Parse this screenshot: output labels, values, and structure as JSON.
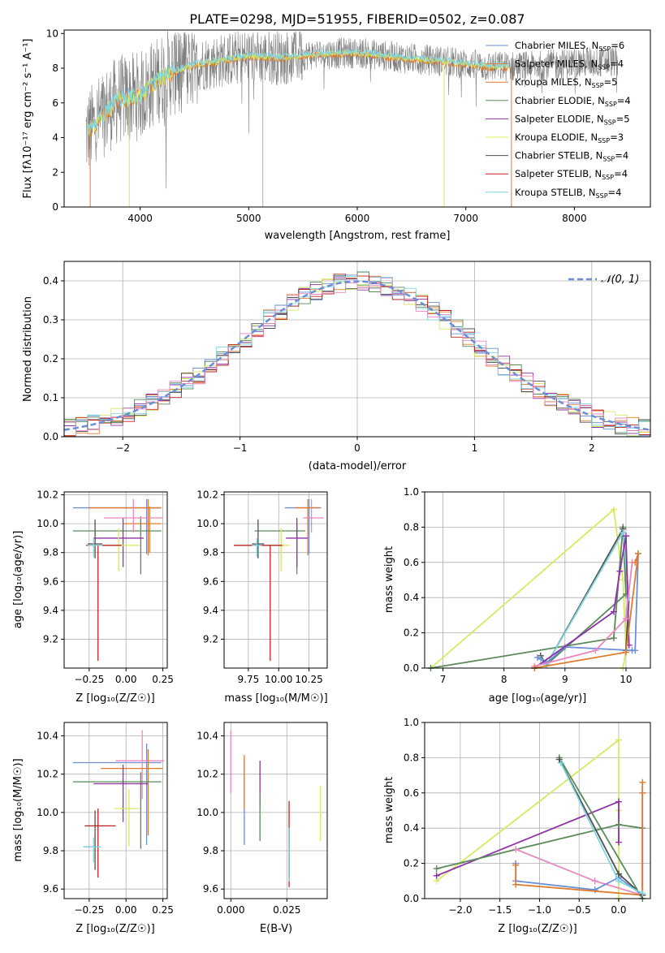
{
  "chart_data": [
    {
      "id": "spectrum",
      "type": "line",
      "title": "PLATE=0298, MJD=51955, FIBERID=0502, z=0.087",
      "xlabel": "wavelength [Angstrom, rest frame]",
      "ylabel": "Flux [fλ10⁻¹⁷ erg cm⁻² s⁻¹ A⁻¹]",
      "xlim": [
        3300,
        8700
      ],
      "ylim": [
        0,
        10.2
      ],
      "xticks": [
        4000,
        5000,
        6000,
        7000,
        8000
      ],
      "yticks": [
        0,
        2,
        4,
        6,
        8,
        10
      ],
      "grid": false,
      "legend_position": "right",
      "data_continuum": {
        "x": [
          3500,
          3600,
          3700,
          3800,
          3900,
          4000,
          4100,
          4200,
          4300,
          4500,
          4700,
          5000,
          5300,
          5600,
          6000,
          6400,
          6800,
          7200,
          7600,
          8000,
          8400
        ],
        "y": [
          4.2,
          4.9,
          5.6,
          6.2,
          6.3,
          6.4,
          7.0,
          7.5,
          7.8,
          8.2,
          8.4,
          8.7,
          8.6,
          8.8,
          8.9,
          8.6,
          8.4,
          8.1,
          8.1,
          8.3,
          8.4
        ]
      },
      "series": [
        {
          "name": "Chabrier MILES, N_SSP=6",
          "color": "#6b8ed6"
        },
        {
          "name": "Salpeter MILES, N_SSP=4",
          "color": "#e07b2e"
        },
        {
          "name": "Kroupa MILES, N_SSP=5",
          "color": "#e07b2e"
        },
        {
          "name": "Chabrier ELODIE, N_SSP=4",
          "color": "#5a8a5a"
        },
        {
          "name": "Salpeter ELODIE, N_SSP=5",
          "color": "#9030a8"
        },
        {
          "name": "Kroupa ELODIE, N_SSP=3",
          "color": "#d8e860"
        },
        {
          "name": "Chabrier STELIB, N_SSP=4",
          "color": "#505050"
        },
        {
          "name": "Salpeter STELIB, N_SSP=4",
          "color": "#c02020"
        },
        {
          "name": "Kroupa STELIB, N_SSP=4",
          "color": "#7fd6e0"
        }
      ],
      "legend": [
        {
          "label": "Chabrier MILES, N",
          "sub": "SSP",
          "suffix": "=6",
          "color": "#6b8ed6"
        },
        {
          "label": "Salpeter MILES, N",
          "sub": "SSP",
          "suffix": "=4",
          "color": "#e07b2e"
        },
        {
          "label": "Kroupa MILES, N",
          "sub": "SSP",
          "suffix": "=5",
          "color": "#e07b2e"
        },
        {
          "label": "Chabrier ELODIE, N",
          "sub": "SSP",
          "suffix": "=4",
          "color": "#5a8a5a"
        },
        {
          "label": "Salpeter ELODIE, N",
          "sub": "SSP",
          "suffix": "=5",
          "color": "#9030a8"
        },
        {
          "label": "Kroupa ELODIE, N",
          "sub": "SSP",
          "suffix": "=3",
          "color": "#d8e860"
        },
        {
          "label": "Chabrier STELIB, N",
          "sub": "SSP",
          "suffix": "=4",
          "color": "#505050"
        },
        {
          "label": "Salpeter STELIB, N",
          "sub": "SSP",
          "suffix": "=4",
          "color": "#c02020"
        },
        {
          "label": "Kroupa STELIB, N",
          "sub": "SSP",
          "suffix": "=4",
          "color": "#7fd6e0"
        }
      ]
    },
    {
      "id": "residuals",
      "type": "line",
      "xlabel": "(data-model)/error",
      "ylabel": "Normed distribution",
      "xlim": [
        -2.5,
        2.5
      ],
      "ylim": [
        0,
        0.45
      ],
      "xticks": [
        -2,
        -1,
        0,
        1,
        2
      ],
      "yticks": [
        0.0,
        0.1,
        0.2,
        0.3,
        0.4
      ],
      "grid": true,
      "legend_position": "top-right",
      "reference_curve": {
        "label": "𝒩(0, 1)",
        "color": "#6b8ed6",
        "style": "dashed"
      },
      "bin_width": 0.1
    },
    {
      "id": "age_vs_Z",
      "type": "scatter",
      "xlabel": "Z [log₁₀(Z/Z☉)]",
      "ylabel": "age [log₁₀(age/yr)]",
      "xlim": [
        -0.42,
        0.28
      ],
      "ylim": [
        9.0,
        10.22
      ],
      "xticks": [
        -0.25,
        0.0,
        0.25
      ],
      "yticks": [
        9.2,
        9.4,
        9.6,
        9.8,
        10.0,
        10.2
      ],
      "grid": true,
      "errorbars": [
        {
          "color": "#6b8ed6",
          "x": 0.14,
          "y": 10.11,
          "xerr": [
            0.5,
            0.1
          ],
          "yerr": [
            0.32,
            0.06
          ]
        },
        {
          "color": "#e07b2e",
          "x": 0.15,
          "y": 10.11,
          "xerr": [
            0.4,
            0.09
          ],
          "yerr": [
            0.33,
            0.06
          ]
        },
        {
          "color": "#e07b2e",
          "x": 0.16,
          "y": 10.0,
          "xerr": [
            0.18,
            0.08
          ],
          "yerr": [
            0.2,
            0.12
          ]
        },
        {
          "color": "#5a8a5a",
          "x": 0.1,
          "y": 9.95,
          "xerr": [
            0.46,
            0.14
          ],
          "yerr": [
            0.3,
            0.1
          ]
        },
        {
          "color": "#9030a8",
          "x": -0.02,
          "y": 9.9,
          "xerr": [
            0.2,
            0.14
          ],
          "yerr": [
            0.2,
            0.14
          ]
        },
        {
          "color": "#d8e860",
          "x": -0.05,
          "y": 9.85,
          "xerr": [
            0.16,
            0.14
          ],
          "yerr": [
            0.18,
            0.12
          ]
        },
        {
          "color": "#505050",
          "x": -0.21,
          "y": 9.86,
          "xerr": [
            0.05,
            0.05
          ],
          "yerr": [
            0.1,
            0.17
          ]
        },
        {
          "color": "#c02020",
          "x": -0.19,
          "y": 9.85,
          "xerr": [
            0.08,
            0.16
          ],
          "yerr": [
            0.8,
            0.0
          ]
        },
        {
          "color": "#7fd6e0",
          "x": -0.22,
          "y": 9.85,
          "xerr": [
            0.04,
            0.06
          ],
          "yerr": [
            0.08,
            0.05
          ]
        },
        {
          "color": "#e888c0",
          "x": 0.05,
          "y": 10.04,
          "xerr": [
            0.2,
            0.2
          ],
          "yerr": [
            0.1,
            0.13
          ]
        }
      ]
    },
    {
      "id": "age_vs_mass",
      "type": "scatter",
      "xlabel": "mass [log₁₀(M/M☉)]",
      "ylabel": "",
      "xlim": [
        9.55,
        10.4
      ],
      "ylim": [
        9.0,
        10.22
      ],
      "xticks": [
        9.75,
        10.0,
        10.25
      ],
      "yticks": [
        9.2,
        9.4,
        9.6,
        9.8,
        10.0,
        10.2
      ],
      "grid": true,
      "errorbars": [
        {
          "color": "#6b8ed6",
          "x": 10.25,
          "y": 10.11,
          "xerr": [
            0.2,
            0.1
          ],
          "yerr": [
            0.32,
            0.06
          ]
        },
        {
          "color": "#e07b2e",
          "x": 10.24,
          "y": 10.11,
          "xerr": [
            0.1,
            0.1
          ],
          "yerr": [
            0.33,
            0.06
          ]
        },
        {
          "color": "#e888c0",
          "x": 10.27,
          "y": 10.04,
          "xerr": [
            0.07,
            0.1
          ],
          "yerr": [
            0.1,
            0.13
          ]
        },
        {
          "color": "#5a8a5a",
          "x": 10.15,
          "y": 9.95,
          "xerr": [
            0.35,
            0.07
          ],
          "yerr": [
            0.3,
            0.05
          ]
        },
        {
          "color": "#9030a8",
          "x": 10.15,
          "y": 9.9,
          "xerr": [
            0.09,
            0.09
          ],
          "yerr": [
            0.2,
            0.14
          ]
        },
        {
          "color": "#d8e860",
          "x": 10.02,
          "y": 9.85,
          "xerr": [
            0.1,
            0.07
          ],
          "yerr": [
            0.18,
            0.12
          ]
        },
        {
          "color": "#505050",
          "x": 9.83,
          "y": 9.86,
          "xerr": [
            0.05,
            0.05
          ],
          "yerr": [
            0.1,
            0.17
          ]
        },
        {
          "color": "#c02020",
          "x": 9.93,
          "y": 9.85,
          "xerr": [
            0.3,
            0.1
          ],
          "yerr": [
            0.8,
            0.0
          ]
        },
        {
          "color": "#7fd6e0",
          "x": 9.82,
          "y": 9.85,
          "xerr": [
            0.04,
            0.04
          ],
          "yerr": [
            0.08,
            0.05
          ]
        }
      ]
    },
    {
      "id": "mass_weight_vs_age",
      "type": "line",
      "xlabel": "age [log₁₀(age/yr)]",
      "ylabel": "mass weight",
      "xlim": [
        6.7,
        10.4
      ],
      "ylim": [
        0,
        1.0
      ],
      "xticks": [
        7,
        8,
        9,
        10
      ],
      "yticks": [
        0.0,
        0.2,
        0.4,
        0.6,
        0.8,
        1.0
      ],
      "grid": true,
      "series": [
        {
          "color": "#d8e860",
          "x": [
            6.8,
            9.8,
            9.95,
            10.0,
            9.95
          ],
          "y": [
            0.0,
            0.9,
            0.5,
            0.1,
            0.0
          ]
        },
        {
          "color": "#5a8a5a",
          "x": [
            6.8,
            9.8,
            9.95,
            10.0,
            8.7
          ],
          "y": [
            0.0,
            0.17,
            0.8,
            0.42,
            0.02
          ]
        },
        {
          "color": "#505050",
          "x": [
            8.6,
            8.7,
            9.95,
            10.05,
            10.0
          ],
          "y": [
            0.07,
            0.02,
            0.79,
            0.4,
            0.1
          ]
        },
        {
          "color": "#7fd6e0",
          "x": [
            8.6,
            8.7,
            9.95,
            10.05
          ],
          "y": [
            0.05,
            0.02,
            0.77,
            0.4
          ]
        },
        {
          "color": "#6b8ed6",
          "x": [
            8.55,
            8.7,
            9.0,
            10.1,
            10.15,
            10.2
          ],
          "y": [
            0.06,
            0.03,
            0.12,
            0.1,
            0.1,
            0.65
          ]
        },
        {
          "color": "#9030a8",
          "x": [
            8.5,
            9.8,
            9.9,
            10.0,
            10.05
          ],
          "y": [
            0.0,
            0.32,
            0.55,
            0.75,
            0.13
          ]
        },
        {
          "color": "#e888c0",
          "x": [
            8.5,
            9.5,
            10.0,
            10.1
          ],
          "y": [
            0.01,
            0.1,
            0.28,
            0.6
          ]
        },
        {
          "color": "#e07b2e",
          "x": [
            8.5,
            10.0,
            10.2,
            10.15
          ],
          "y": [
            0.0,
            0.09,
            0.65,
            0.6
          ]
        }
      ]
    },
    {
      "id": "mass_vs_Z",
      "type": "scatter",
      "xlabel": "Z [log₁₀(Z/Z☉)]",
      "ylabel": "mass [log₁₀(M/M☉)]",
      "xlim": [
        -0.42,
        0.28
      ],
      "ylim": [
        9.55,
        10.47
      ],
      "xticks": [
        -0.25,
        0.0,
        0.25
      ],
      "yticks": [
        9.6,
        9.8,
        10.0,
        10.2,
        10.4
      ],
      "grid": true,
      "errorbars": [
        {
          "color": "#6b8ed6",
          "x": 0.14,
          "y": 10.26,
          "xerr": [
            0.5,
            0.1
          ],
          "yerr": [
            0.43,
            0.1
          ]
        },
        {
          "color": "#e888c0",
          "x": 0.11,
          "y": 10.27,
          "xerr": [
            0.18,
            0.15
          ],
          "yerr": [
            0.2,
            0.16
          ]
        },
        {
          "color": "#e07b2e",
          "x": 0.15,
          "y": 10.23,
          "xerr": [
            0.32,
            0.1
          ],
          "yerr": [
            0.35,
            0.1
          ]
        },
        {
          "color": "#5a8a5a",
          "x": 0.1,
          "y": 10.16,
          "xerr": [
            0.46,
            0.14
          ],
          "yerr": [
            0.35,
            0.05
          ]
        },
        {
          "color": "#9030a8",
          "x": -0.02,
          "y": 10.15,
          "xerr": [
            0.2,
            0.17
          ],
          "yerr": [
            0.2,
            0.1
          ]
        },
        {
          "color": "#d8e860",
          "x": 0.02,
          "y": 10.02,
          "xerr": [
            0.1,
            0.07
          ],
          "yerr": [
            0.2,
            0.1
          ]
        },
        {
          "color": "#c02020",
          "x": -0.19,
          "y": 9.93,
          "xerr": [
            0.09,
            0.12
          ],
          "yerr": [
            0.27,
            0.09
          ]
        },
        {
          "color": "#505050",
          "x": -0.21,
          "y": 9.82,
          "xerr": [
            0.08,
            0.02
          ],
          "yerr": [
            0.12,
            0.19
          ]
        },
        {
          "color": "#7fd6e0",
          "x": -0.22,
          "y": 9.82,
          "xerr": [
            0.07,
            0.05
          ],
          "yerr": [
            0.08,
            0.05
          ]
        }
      ]
    },
    {
      "id": "mass_vs_ebv",
      "type": "scatter",
      "xlabel": "E(B-V)",
      "ylabel": "",
      "xlim": [
        -0.003,
        0.043
      ],
      "ylim": [
        9.55,
        10.47
      ],
      "xticks": [
        0.0,
        0.025
      ],
      "xticklabels": [
        "0.000",
        "0.025"
      ],
      "yticks": [
        9.6,
        9.8,
        10.0,
        10.2,
        10.4
      ],
      "grid": true,
      "errorbars": [
        {
          "color": "#e888c0",
          "x": 0.0,
          "y": 10.25,
          "yerr": [
            0.15,
            0.18
          ]
        },
        {
          "color": "#6b8ed6",
          "x": 0.006,
          "y": 10.1,
          "yerr": [
            0.27,
            0.18
          ]
        },
        {
          "color": "#e07b2e",
          "x": 0.006,
          "y": 10.2,
          "yerr": [
            0.18,
            0.1
          ]
        },
        {
          "color": "#9030a8",
          "x": 0.013,
          "y": 10.15,
          "yerr": [
            0.12,
            0.12
          ]
        },
        {
          "color": "#5a8a5a",
          "x": 0.013,
          "y": 10.0,
          "yerr": [
            0.15,
            0.1
          ]
        },
        {
          "color": "#c02020",
          "x": 0.026,
          "y": 9.93,
          "yerr": [
            0.32,
            0.13
          ]
        },
        {
          "color": "#505050",
          "x": 0.026,
          "y": 9.82,
          "yerr": [
            0.16,
            0.1
          ]
        },
        {
          "color": "#7fd6e0",
          "x": 0.026,
          "y": 9.82,
          "yerr": [
            0.18,
            0.1
          ]
        },
        {
          "color": "#d8e860",
          "x": 0.04,
          "y": 10.0,
          "yerr": [
            0.15,
            0.14
          ]
        }
      ]
    },
    {
      "id": "mass_weight_vs_Z",
      "type": "line",
      "xlabel": "Z [log₁₀(Z/Z☉)]",
      "ylabel": "mass weight",
      "xlim": [
        -2.45,
        0.4
      ],
      "ylim": [
        0,
        1.0
      ],
      "xticks": [
        -2.0,
        -1.5,
        -1.0,
        -0.5,
        0.0
      ],
      "yticks": [
        0.0,
        0.2,
        0.4,
        0.6,
        0.8,
        1.0
      ],
      "grid": true,
      "series": [
        {
          "color": "#d8e860",
          "x": [
            -2.3,
            0.0,
            0.0,
            0.0
          ],
          "y": [
            0.1,
            0.9,
            0.5,
            0.0
          ]
        },
        {
          "color": "#9030a8",
          "x": [
            -2.3,
            0.0,
            0.0
          ],
          "y": [
            0.13,
            0.55,
            0.32
          ]
        },
        {
          "color": "#5a8a5a",
          "x": [
            -2.3,
            0.0,
            0.3,
            0.3,
            -0.75
          ],
          "y": [
            0.17,
            0.42,
            0.4,
            0.0,
            0.8
          ]
        },
        {
          "color": "#e888c0",
          "x": [
            -1.3,
            -0.3,
            0.3,
            0.3
          ],
          "y": [
            0.28,
            0.1,
            0.02,
            0.6
          ]
        },
        {
          "color": "#6b8ed6",
          "x": [
            -1.3,
            -1.3,
            -0.3,
            0.0,
            0.3
          ],
          "y": [
            0.2,
            0.1,
            0.05,
            0.12,
            0.02
          ]
        },
        {
          "color": "#e07b2e",
          "x": [
            -1.3,
            -1.3,
            0.3,
            0.3,
            0.3
          ],
          "y": [
            0.19,
            0.08,
            0.02,
            0.66,
            0.6
          ]
        },
        {
          "color": "#505050",
          "x": [
            -0.75,
            0.0,
            0.3
          ],
          "y": [
            0.79,
            0.14,
            0.02
          ]
        },
        {
          "color": "#7fd6e0",
          "x": [
            -0.73,
            0.0,
            0.3
          ],
          "y": [
            0.77,
            0.1,
            0.03
          ]
        }
      ]
    }
  ]
}
